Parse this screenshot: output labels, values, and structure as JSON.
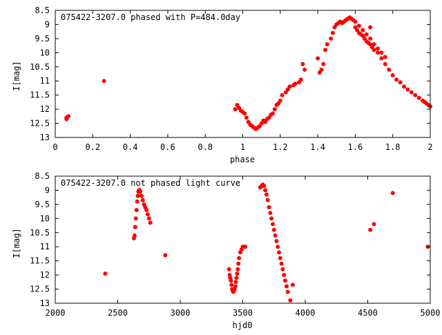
{
  "chart_data": [
    {
      "type": "scatter",
      "title": "075422-3207.0 phased with P=484.0day",
      "xlabel": "phase",
      "ylabel": "I[mag]",
      "xlim": [
        0,
        2
      ],
      "ylim": [
        13,
        8.5
      ],
      "y_inverted": true,
      "grid": false,
      "xticks": [
        "0",
        "0.2",
        "0.4",
        "0.6",
        "0.8",
        "1",
        "1.2",
        "1.4",
        "1.6",
        "1.8",
        "2"
      ],
      "xtick_values": [
        0,
        0.2,
        0.4,
        0.6,
        0.8,
        1,
        1.2,
        1.4,
        1.6,
        1.8,
        2
      ],
      "yticks": [
        "8.5",
        "9",
        "9.5",
        "10",
        "10.5",
        "11",
        "11.5",
        "12",
        "12.5",
        "13"
      ],
      "ytick_values": [
        8.5,
        9,
        9.5,
        10,
        10.5,
        11,
        11.5,
        12,
        12.5,
        13
      ],
      "marker_color": "#ff0000",
      "x": [
        0.06,
        0.06,
        0.07,
        0.26,
        0.96,
        0.97,
        0.98,
        0.99,
        1.0,
        1.01,
        1.02,
        1.03,
        1.04,
        1.05,
        1.06,
        1.07,
        1.08,
        1.09,
        1.1,
        1.11,
        1.12,
        1.13,
        1.14,
        1.15,
        1.16,
        1.17,
        1.18,
        1.19,
        1.2,
        1.21,
        1.23,
        1.24,
        1.25,
        1.27,
        1.28,
        1.3,
        1.31,
        1.32,
        1.33,
        1.4,
        1.41,
        1.42,
        1.43,
        1.44,
        1.45,
        1.47,
        1.48,
        1.49,
        1.5,
        1.51,
        1.52,
        1.53,
        1.54,
        1.55,
        1.56,
        1.57,
        1.58,
        1.59,
        1.6,
        1.61,
        1.62,
        1.63,
        1.64,
        1.65,
        1.66,
        1.67,
        1.68,
        1.69,
        1.7,
        1.72,
        1.74,
        1.76,
        1.78,
        1.8,
        1.82,
        1.84,
        1.86,
        1.88,
        1.9,
        1.92,
        1.94,
        1.96,
        1.97,
        1.98,
        1.99,
        2.0,
        1.6,
        1.62,
        1.64,
        1.66,
        1.68,
        1.7,
        1.72,
        1.74,
        1.76,
        1.68
      ],
      "y": [
        12.3,
        12.35,
        12.25,
        11.0,
        12.0,
        11.85,
        11.95,
        12.05,
        12.1,
        12.15,
        12.3,
        12.45,
        12.55,
        12.6,
        12.65,
        12.7,
        12.65,
        12.6,
        12.5,
        12.4,
        12.45,
        12.35,
        12.3,
        12.2,
        12.15,
        12.0,
        11.85,
        11.8,
        11.7,
        11.5,
        11.4,
        11.3,
        11.2,
        11.15,
        11.1,
        11.05,
        10.95,
        10.4,
        10.6,
        10.2,
        10.7,
        10.6,
        10.4,
        9.9,
        9.7,
        9.5,
        9.3,
        9.1,
        9.0,
        8.95,
        8.9,
        8.95,
        8.9,
        8.85,
        8.8,
        8.75,
        8.8,
        8.85,
        9.1,
        9.2,
        9.3,
        9.35,
        9.4,
        9.5,
        9.6,
        9.65,
        9.7,
        9.8,
        9.9,
        10.0,
        10.2,
        10.4,
        10.6,
        10.8,
        10.95,
        11.05,
        11.2,
        11.3,
        11.4,
        11.5,
        11.6,
        11.7,
        11.75,
        11.8,
        11.85,
        11.9,
        8.9,
        9.05,
        9.2,
        9.35,
        9.5,
        9.7,
        9.85,
        10.0,
        10.15,
        9.1
      ]
    },
    {
      "type": "scatter",
      "title": "075422-3207.0 not phased light curve",
      "xlabel": "hjd0",
      "ylabel": "I[mag]",
      "xlim": [
        2000,
        5000
      ],
      "ylim": [
        13,
        8.5
      ],
      "y_inverted": true,
      "grid": false,
      "xticks": [
        "2000",
        "2500",
        "3000",
        "3500",
        "4000",
        "4500",
        "5000"
      ],
      "xtick_values": [
        2000,
        2500,
        3000,
        3500,
        4000,
        4500,
        5000
      ],
      "yticks": [
        "8.5",
        "9",
        "9.5",
        "10",
        "10.5",
        "11",
        "11.5",
        "12",
        "12.5",
        "13"
      ],
      "ytick_values": [
        8.5,
        9,
        9.5,
        10,
        10.5,
        11,
        11.5,
        12,
        12.5,
        13
      ],
      "marker_color": "#ff0000",
      "x": [
        2400,
        2630,
        2635,
        2640,
        2645,
        2650,
        2655,
        2660,
        2665,
        2670,
        2675,
        2680,
        2690,
        2700,
        2710,
        2720,
        2730,
        2740,
        2750,
        2760,
        2880,
        3390,
        3395,
        3400,
        3405,
        3410,
        3415,
        3420,
        3425,
        3430,
        3435,
        3440,
        3445,
        3450,
        3455,
        3460,
        3465,
        3470,
        3480,
        3490,
        3500,
        3510,
        3520,
        3640,
        3650,
        3660,
        3670,
        3680,
        3690,
        3700,
        3710,
        3720,
        3730,
        3740,
        3750,
        3760,
        3770,
        3780,
        3790,
        3800,
        3810,
        3820,
        3830,
        3840,
        3850,
        3860,
        3880,
        3900,
        4520,
        4550,
        4700,
        4980
      ],
      "y": [
        11.95,
        10.7,
        10.6,
        10.3,
        10.0,
        9.7,
        9.4,
        9.2,
        9.05,
        9.0,
        9.0,
        9.05,
        9.2,
        9.35,
        9.5,
        9.6,
        9.7,
        9.85,
        10.0,
        10.15,
        11.3,
        11.8,
        12.0,
        12.1,
        12.2,
        12.35,
        12.5,
        12.55,
        12.6,
        12.55,
        12.5,
        12.4,
        12.25,
        12.1,
        11.95,
        11.8,
        11.6,
        11.4,
        11.2,
        11.1,
        11.0,
        11.0,
        11.0,
        8.9,
        8.85,
        8.8,
        8.85,
        9.0,
        9.15,
        9.35,
        9.6,
        9.8,
        10.0,
        10.2,
        10.4,
        10.6,
        10.8,
        11.0,
        11.2,
        11.4,
        11.6,
        11.8,
        12.0,
        12.2,
        12.4,
        12.6,
        12.9,
        12.35,
        10.4,
        10.2,
        9.1,
        11.0
      ]
    }
  ]
}
